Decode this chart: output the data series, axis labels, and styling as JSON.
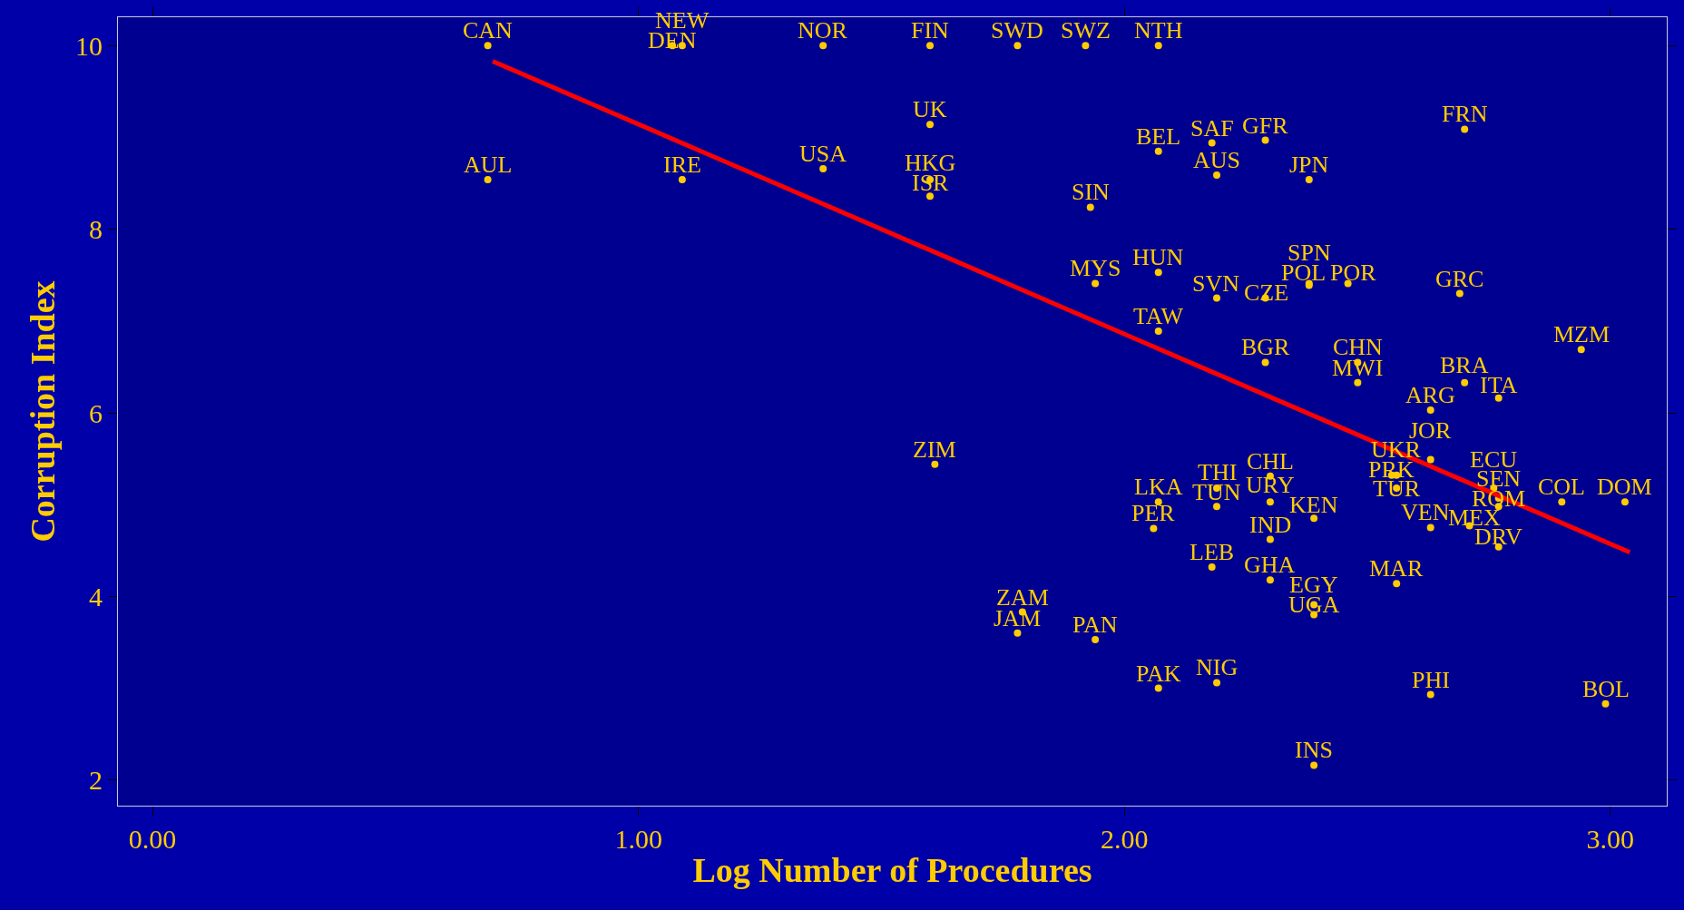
{
  "chart_data": {
    "type": "scatter",
    "xlabel": "Log Number of Procedures",
    "ylabel": "Corruption Index",
    "xlim": [
      -0.071,
      3.116
    ],
    "ylim": [
      1.72,
      10.31
    ],
    "xticks": [
      {
        "value": 0,
        "label": "0.00"
      },
      {
        "value": 1,
        "label": "1.00"
      },
      {
        "value": 2,
        "label": "2.00"
      },
      {
        "value": 3,
        "label": "3.00"
      }
    ],
    "yticks": [
      2,
      4,
      6,
      8,
      10
    ],
    "grid": false,
    "marker": "circle",
    "series": [
      {
        "color": "#ffcc00",
        "x": [
          0.69,
          1.07,
          1.09,
          1.38,
          1.6,
          1.78,
          1.92,
          2.07,
          0.69,
          1.09,
          1.38,
          1.6,
          1.6,
          1.6,
          2.07,
          2.18,
          2.29,
          2.19,
          2.38,
          2.7,
          1.93,
          1.94,
          2.07,
          2.19,
          2.29,
          2.38,
          2.38,
          2.46,
          2.69,
          2.07,
          2.29,
          2.48,
          2.48,
          2.7,
          2.77,
          2.63,
          2.94,
          1.61,
          2.63,
          2.55,
          2.56,
          2.56,
          2.76,
          2.77,
          2.77,
          2.9,
          3.03,
          2.19,
          2.3,
          2.3,
          2.07,
          2.19,
          2.39,
          2.06,
          2.3,
          2.63,
          2.71,
          2.77,
          2.18,
          2.3,
          2.56,
          2.39,
          2.39,
          1.79,
          1.78,
          1.94,
          2.07,
          2.19,
          2.63,
          2.99,
          2.39
        ],
        "values": [
          10,
          10,
          10,
          10,
          10,
          10,
          10,
          10,
          8.54,
          8.54,
          8.66,
          9.14,
          8.54,
          8.36,
          8.85,
          8.94,
          8.97,
          8.59,
          8.54,
          9.09,
          8.24,
          7.41,
          7.53,
          7.25,
          7.25,
          7.41,
          7.39,
          7.41,
          7.3,
          6.89,
          6.55,
          6.55,
          6.33,
          6.33,
          6.16,
          6.03,
          6.69,
          5.44,
          5.49,
          5.32,
          5.32,
          5.18,
          5.18,
          5.07,
          4.98,
          5.03,
          5.03,
          5.18,
          5.31,
          5.03,
          5.03,
          4.98,
          4.85,
          4.74,
          4.62,
          4.75,
          4.77,
          4.54,
          4.32,
          4.18,
          4.14,
          3.91,
          3.8,
          3.83,
          3.6,
          3.53,
          3.0,
          3.06,
          2.93,
          2.83,
          2.16
        ],
        "value_labels": [
          "CAN",
          "DEN",
          "NEW",
          "NOR",
          "FIN",
          "SWD",
          "SWZ",
          "NTH",
          "AUL",
          "IRE",
          "USA",
          "UK",
          "HKG",
          "ISR",
          "BEL",
          "SAF",
          "GFR",
          "AUS",
          "JPN",
          "FRN",
          "SIN",
          "MYS",
          "HUN",
          "SVN",
          "CZE",
          "SPN",
          "POL",
          "POR",
          "GRC",
          "TAW",
          "BGR",
          "CHN",
          "MWI",
          "BRA",
          "ITA",
          "ARG",
          "MZM",
          "ZIM",
          "JOR",
          "PRK",
          "UKR",
          "TUR",
          "ECU",
          "SEN",
          "ROM",
          "COL",
          "DOM",
          "THI",
          "CHL",
          "URY",
          "LKA",
          "TUN",
          "KEN",
          "PER",
          "IND",
          "VEN",
          "MEX",
          "DRV",
          "LEB",
          "GHA",
          "MAR",
          "EGY",
          "UGA",
          "ZAM",
          "JAM",
          "PAN",
          "PAK",
          "NIG",
          "PHI",
          "BOL",
          "INS"
        ]
      },
      {
        "type": "line",
        "color": "#ff0000",
        "x": [
          0.7,
          3.04
        ],
        "values": [
          9.83,
          4.48
        ],
        "line_style": "solid",
        "marker": "none"
      }
    ]
  }
}
